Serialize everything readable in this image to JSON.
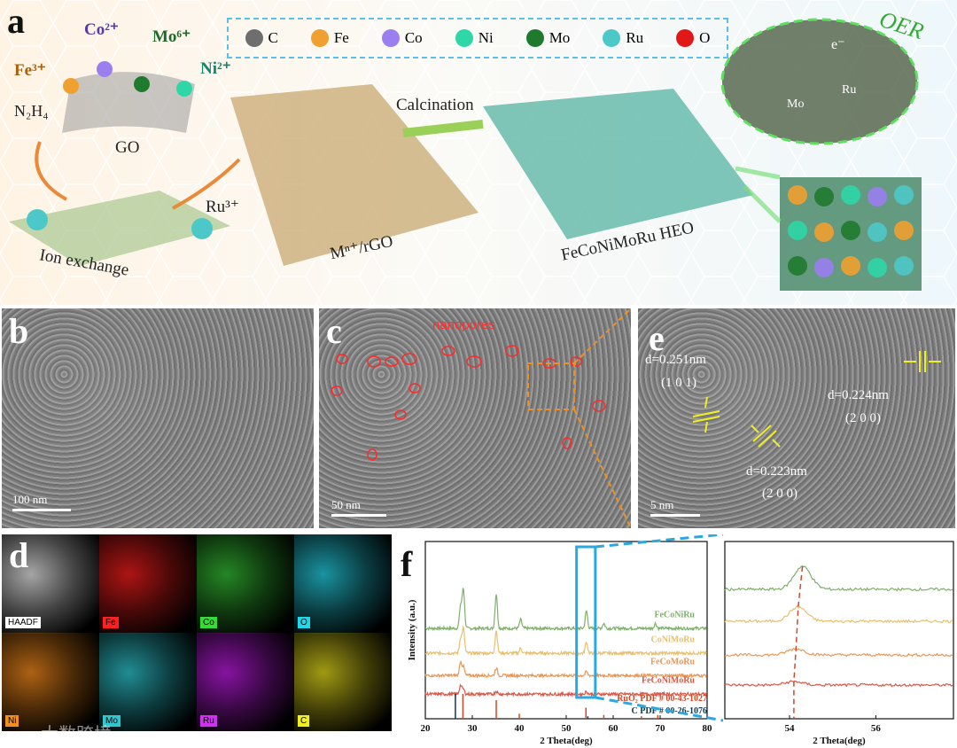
{
  "panel_a": {
    "label": "a",
    "legend": [
      {
        "symbol": "C",
        "color": "#6e6e6e"
      },
      {
        "symbol": "Fe",
        "color": "#f0a030"
      },
      {
        "symbol": "Co",
        "color": "#9b7ff0"
      },
      {
        "symbol": "Ni",
        "color": "#2ed6a8"
      },
      {
        "symbol": "Mo",
        "color": "#1f7a2e"
      },
      {
        "symbol": "Ru",
        "color": "#4cc8c8"
      },
      {
        "symbol": "O",
        "color": "#e01818"
      }
    ],
    "ions": {
      "co": "Co²⁺",
      "mo": "Mo⁶⁺",
      "fe": "Fe³⁺",
      "ni": "Ni²⁺",
      "n2h4": "N₂H₄",
      "ru": "Ru³⁺"
    },
    "go": "GO",
    "ion_exchange": "Ion exchange",
    "mrgo": "Mⁿ⁺/rGO",
    "calcination": "Calcination",
    "heo": "FeCoNiMoRu HEO",
    "oer": "OER",
    "mo_label": "Mo",
    "ru_label": "Ru",
    "e_label": "e⁻"
  },
  "panel_b": {
    "label": "b",
    "scale": "100 nm"
  },
  "panel_c": {
    "label": "c",
    "scale": "50 nm",
    "nanopores": "nanopores"
  },
  "panel_e": {
    "label": "e",
    "scale": "5 nm",
    "d1": "d=0.251nm",
    "h1": "(1 0 1)",
    "d2": "d=0.224nm",
    "h2": "(2 0 0)",
    "d3": "d=0.223nm",
    "h3": "(2 0 0)"
  },
  "panel_d": {
    "label": "d",
    "maps": [
      {
        "name": "HAADF",
        "tint": "#cfcfcf",
        "label_bg": "#ffffff"
      },
      {
        "name": "Fe",
        "tint": "#d81a1a",
        "label_bg": "#ff2020"
      },
      {
        "name": "Co",
        "tint": "#2ea82e",
        "label_bg": "#33dd33"
      },
      {
        "name": "O",
        "tint": "#20b8c8",
        "label_bg": "#22d8e8"
      },
      {
        "name": "Ni",
        "tint": "#d87a18",
        "label_bg": "#f09020"
      },
      {
        "name": "Mo",
        "tint": "#28b0b8",
        "label_bg": "#30c8d0"
      },
      {
        "name": "Ru",
        "tint": "#a818c8",
        "label_bg": "#d030f0"
      },
      {
        "name": "C",
        "tint": "#c8c018",
        "label_bg": "#f0f020"
      }
    ]
  },
  "panel_f": {
    "label": "f",
    "chart_data": [
      {
        "type": "line",
        "xlabel": "2 Theta(deg)",
        "ylabel": "Intensity (a.u.)",
        "xlim": [
          20,
          80
        ],
        "xticks": [
          20,
          30,
          40,
          50,
          60,
          70,
          80
        ],
        "series": [
          {
            "name": "FeCoNiRu",
            "color": "#7fb06a",
            "offset": 3.0,
            "peaks": [
              [
                27.5,
                0.9
              ],
              [
                28.1,
                1.6
              ],
              [
                35.1,
                1.4
              ],
              [
                40.3,
                0.35
              ],
              [
                54.3,
                0.7
              ],
              [
                58.0,
                0.2
              ],
              [
                69.0,
                0.2
              ]
            ]
          },
          {
            "name": "CoNiMoRu",
            "color": "#e8c070",
            "offset": 2.0,
            "peaks": [
              [
                27.5,
                0.6
              ],
              [
                28.1,
                1.0
              ],
              [
                35.1,
                0.9
              ],
              [
                40.3,
                0.2
              ],
              [
                54.3,
                0.45
              ]
            ]
          },
          {
            "name": "FeCoMoRu",
            "color": "#e89858",
            "offset": 1.1,
            "peaks": [
              [
                27.5,
                0.55
              ],
              [
                28.1,
                0.35
              ],
              [
                35.1,
                0.3
              ],
              [
                54.3,
                0.15
              ]
            ]
          },
          {
            "name": "FeCoNiMoRu",
            "color": "#d85848",
            "offset": 0.35,
            "peaks": [
              [
                27.5,
                0.35
              ],
              [
                28.1,
                0.2
              ],
              [
                35.1,
                0.12
              ],
              [
                54.3,
                0.1
              ]
            ]
          }
        ],
        "references": [
          {
            "name": "RuO₂ PDF # 00-43-1027",
            "color": "#d04828",
            "lines": [
              [
                28.0,
                1.0
              ],
              [
                35.1,
                0.75
              ],
              [
                40.0,
                0.2
              ],
              [
                54.2,
                0.45
              ],
              [
                58.0,
                0.15
              ],
              [
                66.0,
                0.1
              ],
              [
                69.5,
                0.15
              ]
            ]
          },
          {
            "name": "C PDF # 00-26-1076",
            "color": "#103850",
            "lines": [
              [
                26.4,
                1.0
              ],
              [
                54.6,
                0.1
              ]
            ]
          }
        ]
      },
      {
        "type": "line",
        "xlabel": "2 Theta(deg)",
        "xlim": [
          52.5,
          57.8
        ],
        "xticks": [
          54,
          56
        ],
        "series": [
          {
            "name": "FeCoNiRu",
            "color": "#7fb06a",
            "peak": 54.3
          },
          {
            "name": "CoNiMoRu",
            "color": "#e8c070",
            "peak": 54.2
          },
          {
            "name": "FeCoMoRu",
            "color": "#e89858",
            "peak": 54.15
          },
          {
            "name": "FeCoNiMoRu",
            "color": "#d85848",
            "peak": 54.1
          }
        ]
      }
    ]
  },
  "watermark": "大数跨境"
}
